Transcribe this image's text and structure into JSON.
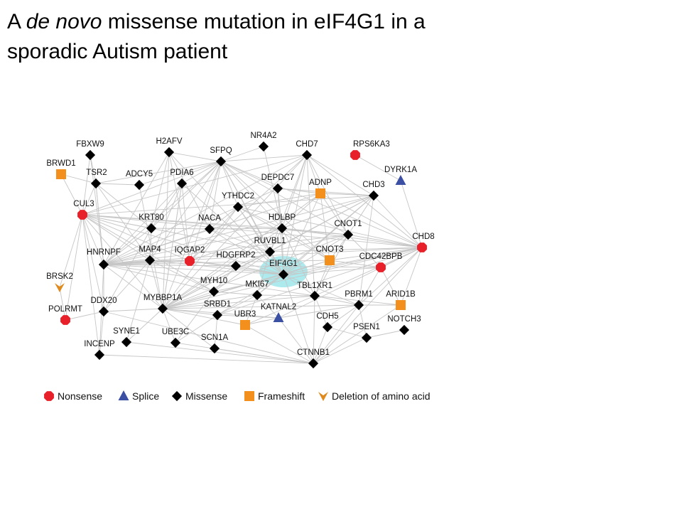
{
  "title": {
    "part1": "A ",
    "italic": "de novo",
    "part2": " missense mutation in eIF4G1 in a",
    "line2": "sporadic Autism patient"
  },
  "colors": {
    "nonsense": "#e8202a",
    "splice": "#3b4fa3",
    "missense": "#000000",
    "frameshift": "#f3901d",
    "deletion": "#e0891c",
    "edge": "#c6c6c6",
    "highlight": "#9fe6ea"
  },
  "legend": [
    {
      "type": "nonsense",
      "label": "Nonsense"
    },
    {
      "type": "splice",
      "label": "Splice"
    },
    {
      "type": "missense",
      "label": "Missense"
    },
    {
      "type": "frameshift",
      "label": "Frameshift"
    },
    {
      "type": "deletion",
      "label": "Deletion of amino acid"
    }
  ],
  "nodes": [
    {
      "id": "FBXW9",
      "type": "missense"
    },
    {
      "id": "H2AFV",
      "type": "missense"
    },
    {
      "id": "NR4A2",
      "type": "missense"
    },
    {
      "id": "SFPQ",
      "type": "missense"
    },
    {
      "id": "CHD7",
      "type": "missense"
    },
    {
      "id": "RPS6KA3",
      "type": "nonsense"
    },
    {
      "id": "BRWD1",
      "type": "frameshift"
    },
    {
      "id": "TSR2",
      "type": "missense"
    },
    {
      "id": "ADCY5",
      "type": "missense"
    },
    {
      "id": "PDIA6",
      "type": "missense"
    },
    {
      "id": "DEPDC7",
      "type": "missense"
    },
    {
      "id": "DYRK1A",
      "type": "splice"
    },
    {
      "id": "ADNP",
      "type": "frameshift"
    },
    {
      "id": "CHD3",
      "type": "missense"
    },
    {
      "id": "YTHDC2",
      "type": "missense"
    },
    {
      "id": "CUL3",
      "type": "nonsense"
    },
    {
      "id": "KRT80",
      "type": "missense"
    },
    {
      "id": "NACA",
      "type": "missense"
    },
    {
      "id": "HDLBP",
      "type": "missense"
    },
    {
      "id": "CNOT1",
      "type": "missense"
    },
    {
      "id": "CHD8",
      "type": "nonsense"
    },
    {
      "id": "RUVBL1",
      "type": "missense"
    },
    {
      "id": "HNRNPF",
      "type": "missense"
    },
    {
      "id": "MAP4",
      "type": "missense"
    },
    {
      "id": "IQGAP2",
      "type": "nonsense"
    },
    {
      "id": "HDGFRP2",
      "type": "missense"
    },
    {
      "id": "CNOT3",
      "type": "frameshift"
    },
    {
      "id": "CDC42BPB",
      "type": "nonsense"
    },
    {
      "id": "EIF4G1",
      "type": "missense",
      "highlight": true
    },
    {
      "id": "BRSK2",
      "type": "deletion"
    },
    {
      "id": "MYH10",
      "type": "missense"
    },
    {
      "id": "MKI67",
      "type": "missense"
    },
    {
      "id": "TBL1XR1",
      "type": "missense"
    },
    {
      "id": "PBRM1",
      "type": "missense"
    },
    {
      "id": "ARID1B",
      "type": "frameshift"
    },
    {
      "id": "DDX20",
      "type": "missense"
    },
    {
      "id": "MYBBP1A",
      "type": "missense"
    },
    {
      "id": "SRBD1",
      "type": "missense"
    },
    {
      "id": "KATNAL2",
      "type": "splice"
    },
    {
      "id": "POLRMT",
      "type": "nonsense"
    },
    {
      "id": "UBR3",
      "type": "frameshift"
    },
    {
      "id": "CDH5",
      "type": "missense"
    },
    {
      "id": "NOTCH3",
      "type": "missense"
    },
    {
      "id": "SYNE1",
      "type": "missense"
    },
    {
      "id": "UBE3C",
      "type": "missense"
    },
    {
      "id": "PSEN1",
      "type": "missense"
    },
    {
      "id": "SCN1A",
      "type": "missense"
    },
    {
      "id": "INCENP",
      "type": "missense"
    },
    {
      "id": "CTNNB1",
      "type": "missense"
    }
  ],
  "edges": [
    [
      "SFPQ",
      "H2AFV"
    ],
    [
      "SFPQ",
      "NR4A2"
    ],
    [
      "SFPQ",
      "CHD7"
    ],
    [
      "SFPQ",
      "TSR2"
    ],
    [
      "SFPQ",
      "ADCY5"
    ],
    [
      "SFPQ",
      "PDIA6"
    ],
    [
      "SFPQ",
      "YTHDC2"
    ],
    [
      "SFPQ",
      "HDLBP"
    ],
    [
      "SFPQ",
      "CUL3"
    ],
    [
      "SFPQ",
      "HNRNPF"
    ],
    [
      "SFPQ",
      "NACA"
    ],
    [
      "SFPQ",
      "RUVBL1"
    ],
    [
      "SFPQ",
      "EIF4G1"
    ],
    [
      "SFPQ",
      "CNOT1"
    ],
    [
      "SFPQ",
      "CHD8"
    ],
    [
      "SFPQ",
      "MYBBP1A"
    ],
    [
      "SFPQ",
      "IQGAP2"
    ],
    [
      "SFPQ",
      "CNOT3"
    ],
    [
      "SFPQ",
      "DEPDC7"
    ],
    [
      "SFPQ",
      "KRT80"
    ],
    [
      "SFPQ",
      "MAP4"
    ],
    [
      "CHD7",
      "CHD8"
    ],
    [
      "CHD7",
      "CHD3"
    ],
    [
      "CHD7",
      "ADNP"
    ],
    [
      "CHD7",
      "EIF4G1"
    ],
    [
      "CHD7",
      "HNRNPF"
    ],
    [
      "CHD7",
      "CUL3"
    ],
    [
      "CHD7",
      "HDLBP"
    ],
    [
      "CHD7",
      "CNOT1"
    ],
    [
      "CHD7",
      "RUVBL1"
    ],
    [
      "CHD7",
      "IQGAP2"
    ],
    [
      "CHD7",
      "MYBBP1A"
    ],
    [
      "CHD7",
      "TBL1XR1"
    ],
    [
      "RPS6KA3",
      "DYRK1A"
    ],
    [
      "DYRK1A",
      "CHD8"
    ],
    [
      "CHD3",
      "CHD8"
    ],
    [
      "CHD3",
      "ADNP"
    ],
    [
      "CHD3",
      "HDLBP"
    ],
    [
      "CHD3",
      "EIF4G1"
    ],
    [
      "CHD3",
      "RUVBL1"
    ],
    [
      "CHD3",
      "CUL3"
    ],
    [
      "CHD3",
      "MYBBP1A"
    ],
    [
      "CHD3",
      "HNRNPF"
    ],
    [
      "CHD3",
      "CNOT1"
    ],
    [
      "CHD3",
      "PBRM1"
    ],
    [
      "CHD3",
      "IQGAP2"
    ],
    [
      "CHD3",
      "MKI67"
    ],
    [
      "CHD8",
      "CNOT1"
    ],
    [
      "CHD8",
      "CDC42BPB"
    ],
    [
      "CHD8",
      "EIF4G1"
    ],
    [
      "CHD8",
      "HDLBP"
    ],
    [
      "CHD8",
      "CTNNB1"
    ],
    [
      "CHD8",
      "PBRM1"
    ],
    [
      "CHD8",
      "ARID1B"
    ],
    [
      "CHD8",
      "TBL1XR1"
    ],
    [
      "CHD8",
      "RUVBL1"
    ],
    [
      "CHD8",
      "HNRNPF"
    ],
    [
      "CHD8",
      "MYBBP1A"
    ],
    [
      "CHD8",
      "ADNP"
    ],
    [
      "CHD8",
      "CNOT3"
    ],
    [
      "CHD8",
      "CUL3"
    ],
    [
      "CHD8",
      "MYH10"
    ],
    [
      "CHD8",
      "SRBD1"
    ],
    [
      "CHD8",
      "YTHDC2"
    ],
    [
      "CHD8",
      "KATNAL2"
    ],
    [
      "CUL3",
      "BRWD1"
    ],
    [
      "CUL3",
      "TSR2"
    ],
    [
      "CUL3",
      "HNRNPF"
    ],
    [
      "CUL3",
      "MAP4"
    ],
    [
      "CUL3",
      "EIF4G1"
    ],
    [
      "CUL3",
      "RUVBL1"
    ],
    [
      "CUL3",
      "MYBBP1A"
    ],
    [
      "CUL3",
      "CNOT1"
    ],
    [
      "CUL3",
      "KRT80"
    ],
    [
      "CUL3",
      "DDX20"
    ],
    [
      "CUL3",
      "POLRMT"
    ],
    [
      "CUL3",
      "BRSK2"
    ],
    [
      "CUL3",
      "FBXW9"
    ],
    [
      "CUL3",
      "HDLBP"
    ],
    [
      "CUL3",
      "IQGAP2"
    ],
    [
      "CUL3",
      "MYH10"
    ],
    [
      "HNRNPF",
      "MAP4"
    ],
    [
      "HNRNPF",
      "IQGAP2"
    ],
    [
      "HNRNPF",
      "HDLBP"
    ],
    [
      "HNRNPF",
      "EIF4G1"
    ],
    [
      "HNRNPF",
      "RUVBL1"
    ],
    [
      "HNRNPF",
      "MYBBP1A"
    ],
    [
      "HNRNPF",
      "YTHDC2"
    ],
    [
      "HNRNPF",
      "CNOT1"
    ],
    [
      "HNRNPF",
      "CNOT3"
    ],
    [
      "HNRNPF",
      "NACA"
    ],
    [
      "HNRNPF",
      "DDX20"
    ],
    [
      "HNRNPF",
      "INCENP"
    ],
    [
      "HNRNPF",
      "PDIA6"
    ],
    [
      "HNRNPF",
      "H2AFV"
    ],
    [
      "HNRNPF",
      "HDGFRP2"
    ],
    [
      "HNRNPF",
      "MYH10"
    ],
    [
      "HNRNPF",
      "KRT80"
    ],
    [
      "HNRNPF",
      "TBL1XR1"
    ],
    [
      "HNRNPF",
      "ADNP"
    ],
    [
      "HNRNPF",
      "CDC42BPB"
    ],
    [
      "HNRNPF",
      "TSR2"
    ],
    [
      "EIF4G1",
      "HDLBP"
    ],
    [
      "EIF4G1",
      "RUVBL1"
    ],
    [
      "EIF4G1",
      "CNOT3"
    ],
    [
      "EIF4G1",
      "CNOT1"
    ],
    [
      "EIF4G1",
      "YTHDC2"
    ],
    [
      "EIF4G1",
      "MYBBP1A"
    ],
    [
      "EIF4G1",
      "TBL1XR1"
    ],
    [
      "EIF4G1",
      "MKI67"
    ],
    [
      "EIF4G1",
      "HDGFRP2"
    ],
    [
      "EIF4G1",
      "IQGAP2"
    ],
    [
      "EIF4G1",
      "PBRM1"
    ],
    [
      "EIF4G1",
      "ADNP"
    ],
    [
      "EIF4G1",
      "DEPDC7"
    ],
    [
      "EIF4G1",
      "NACA"
    ],
    [
      "EIF4G1",
      "CDC42BPB"
    ],
    [
      "EIF4G1",
      "MAP4"
    ],
    [
      "EIF4G1",
      "PDIA6"
    ],
    [
      "EIF4G1",
      "H2AFV"
    ],
    [
      "EIF4G1",
      "SRBD1"
    ],
    [
      "EIF4G1",
      "CTNNB1"
    ],
    [
      "MYBBP1A",
      "MAP4"
    ],
    [
      "MYBBP1A",
      "HDLBP"
    ],
    [
      "MYBBP1A",
      "RUVBL1"
    ],
    [
      "MYBBP1A",
      "CNOT1"
    ],
    [
      "MYBBP1A",
      "MYH10"
    ],
    [
      "MYBBP1A",
      "MKI67"
    ],
    [
      "MYBBP1A",
      "DDX20"
    ],
    [
      "MYBBP1A",
      "SYNE1"
    ],
    [
      "MYBBP1A",
      "UBE3C"
    ],
    [
      "MYBBP1A",
      "SRBD1"
    ],
    [
      "MYBBP1A",
      "KATNAL2"
    ],
    [
      "MYBBP1A",
      "TBL1XR1"
    ],
    [
      "MYBBP1A",
      "CNOT3"
    ],
    [
      "MYBBP1A",
      "HDGFRP2"
    ],
    [
      "MYBBP1A",
      "YTHDC2"
    ],
    [
      "MYBBP1A",
      "H2AFV"
    ],
    [
      "MYBBP1A",
      "PDIA6"
    ],
    [
      "MYBBP1A",
      "ADCY5"
    ],
    [
      "MYBBP1A",
      "ADNP"
    ],
    [
      "MYBBP1A",
      "PBRM1"
    ],
    [
      "MYBBP1A",
      "UBR3"
    ],
    [
      "MYBBP1A",
      "SCN1A"
    ],
    [
      "HDLBP",
      "RUVBL1"
    ],
    [
      "HDLBP",
      "CNOT1"
    ],
    [
      "HDLBP",
      "YTHDC2"
    ],
    [
      "HDLBP",
      "ADNP"
    ],
    [
      "HDLBP",
      "DEPDC7"
    ],
    [
      "HDLBP",
      "CNOT3"
    ],
    [
      "HDLBP",
      "TBL1XR1"
    ],
    [
      "HDLBP",
      "IQGAP2"
    ],
    [
      "HDLBP",
      "NACA"
    ],
    [
      "CNOT1",
      "CNOT3"
    ],
    [
      "CNOT1",
      "RUVBL1"
    ],
    [
      "CNOT1",
      "ADNP"
    ],
    [
      "CNOT1",
      "TBL1XR1"
    ],
    [
      "CNOT1",
      "CDC42BPB"
    ],
    [
      "RUVBL1",
      "YTHDC2"
    ],
    [
      "RUVBL1",
      "HDGFRP2"
    ],
    [
      "RUVBL1",
      "MYH10"
    ],
    [
      "RUVBL1",
      "NACA"
    ],
    [
      "RUVBL1",
      "MKI67"
    ],
    [
      "PBRM1",
      "ARID1B"
    ],
    [
      "PBRM1",
      "TBL1XR1"
    ],
    [
      "PBRM1",
      "CTNNB1"
    ],
    [
      "PBRM1",
      "CDH5"
    ],
    [
      "PBRM1",
      "KATNAL2"
    ],
    [
      "CTNNB1",
      "CDH5"
    ],
    [
      "CTNNB1",
      "PSEN1"
    ],
    [
      "CTNNB1",
      "INCENP"
    ],
    [
      "CTNNB1",
      "SCN1A"
    ],
    [
      "CTNNB1",
      "UBR3"
    ],
    [
      "CTNNB1",
      "TBL1XR1"
    ],
    [
      "CTNNB1",
      "KATNAL2"
    ],
    [
      "CTNNB1",
      "SYNE1"
    ],
    [
      "CTNNB1",
      "UBE3C"
    ],
    [
      "CTNNB1",
      "DDX20"
    ],
    [
      "PSEN1",
      "NOTCH3"
    ],
    [
      "PSEN1",
      "CDH5"
    ],
    [
      "PSEN1",
      "PBRM1"
    ],
    [
      "DDX20",
      "POLRMT"
    ],
    [
      "DDX20",
      "INCENP"
    ],
    [
      "DDX20",
      "MAP4"
    ],
    [
      "DDX20",
      "KRT80"
    ],
    [
      "TSR2",
      "BRWD1"
    ],
    [
      "TSR2",
      "ADCY5"
    ],
    [
      "TSR2",
      "HNRNPF"
    ],
    [
      "TSR2",
      "MAP4"
    ],
    [
      "TSR2",
      "KRT80"
    ],
    [
      "PDIA6",
      "MAP4"
    ],
    [
      "PDIA6",
      "KRT80"
    ],
    [
      "PDIA6",
      "MYBBP1A"
    ],
    [
      "PDIA6",
      "IQGAP2"
    ],
    [
      "YTHDC2",
      "DEPDC7"
    ],
    [
      "YTHDC2",
      "ADNP"
    ],
    [
      "YTHDC2",
      "CNOT3"
    ],
    [
      "YTHDC2",
      "IQGAP2"
    ],
    [
      "YTHDC2",
      "NACA"
    ],
    [
      "MAP4",
      "KRT80"
    ],
    [
      "MAP4",
      "IQGAP2"
    ],
    [
      "MAP4",
      "MYH10"
    ],
    [
      "H2AFV",
      "KRT80"
    ],
    [
      "H2AFV",
      "NACA"
    ],
    [
      "H2AFV",
      "IQGAP2"
    ],
    [
      "MKI67",
      "TBL1XR1"
    ],
    [
      "MKI67",
      "KATNAL2"
    ],
    [
      "MKI67",
      "SRBD1"
    ],
    [
      "MKI67",
      "UBR3"
    ],
    [
      "MKI67",
      "MYH10"
    ],
    [
      "UBR3",
      "TBL1XR1"
    ],
    [
      "UBR3",
      "KATNAL2"
    ],
    [
      "CDC42BPB",
      "PBRM1"
    ],
    [
      "CDC42BPB",
      "CNOT3"
    ],
    [
      "CDC42BPB",
      "ARID1B"
    ],
    [
      "TBL1XR1",
      "ARID1B"
    ],
    [
      "TBL1XR1",
      "CNOT3"
    ],
    [
      "HDGFRP2",
      "MYH10"
    ],
    [
      "HDGFRP2",
      "IQGAP2"
    ],
    [
      "SCN1A",
      "SRBD1"
    ],
    [
      "FBXW9",
      "TSR2"
    ],
    [
      "FBXW9",
      "HNRNPF"
    ],
    [
      "DEPDC7",
      "ADNP"
    ],
    [
      "DEPDC7",
      "CHD3"
    ],
    [
      "NR4A2",
      "HDLBP"
    ],
    [
      "BRSK2",
      "POLRMT"
    ],
    [
      "SYNE1",
      "MAP4"
    ],
    [
      "UBE3C",
      "MYH10"
    ],
    [
      "UBE3C",
      "SRBD1"
    ],
    [
      "CDH5",
      "TBL1XR1"
    ],
    [
      "INCENP",
      "CUL3"
    ],
    [
      "KATNAL2",
      "SRBD1"
    ],
    [
      "NACA",
      "KRT80"
    ],
    [
      "ADNP",
      "CNOT3"
    ],
    [
      "ARID1B",
      "CTNNB1"
    ]
  ]
}
